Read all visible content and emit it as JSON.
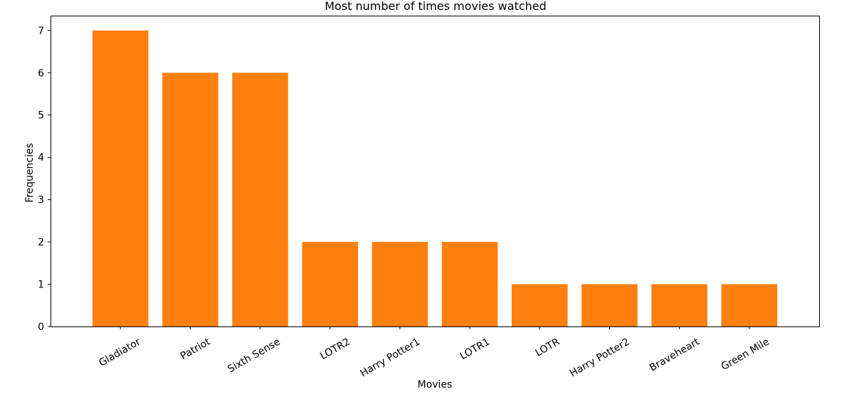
{
  "chart_data": {
    "type": "bar",
    "title": "Most number of times movies watched",
    "xlabel": "Movies",
    "ylabel": "Frequencies",
    "categories": [
      "Gladiator",
      "Patriot",
      "Sixth Sense",
      "LOTR2",
      "Harry Potter1",
      "LOTR1",
      "LOTR",
      "Harry Potter2",
      "Braveheart",
      "Green Mile"
    ],
    "values": [
      7,
      6,
      6,
      2,
      2,
      2,
      1,
      1,
      1,
      1
    ],
    "ylim": [
      0,
      7.35
    ],
    "yticks": [
      "0",
      "1",
      "2",
      "3",
      "4",
      "5",
      "6",
      "7"
    ],
    "bar_color": "#ff7f0e",
    "grid": false,
    "legend": "none",
    "xtick_rotation_deg": 30
  }
}
